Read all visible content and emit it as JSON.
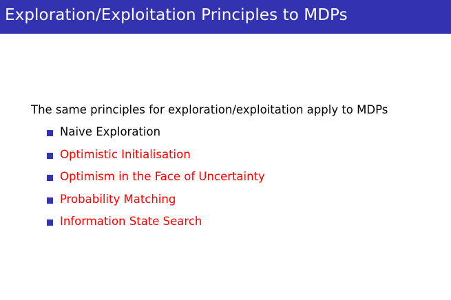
{
  "slide": {
    "title": "Exploration/Exploitation Principles to MDPs",
    "intro": "The same principles for exploration/exploitation apply to MDPs",
    "items": [
      {
        "label": "Naive Exploration",
        "color": "#000000"
      },
      {
        "label": "Optimistic Initialisation",
        "color": "#ff0000"
      },
      {
        "label": "Optimism in the Face of Uncertainty",
        "color": "#ff0000"
      },
      {
        "label": "Probability Matching",
        "color": "#ff0000"
      },
      {
        "label": "Information State Search",
        "color": "#ff0000"
      }
    ],
    "accent_color": "#3333b2",
    "bullet_icon": "square-bullet-icon"
  }
}
